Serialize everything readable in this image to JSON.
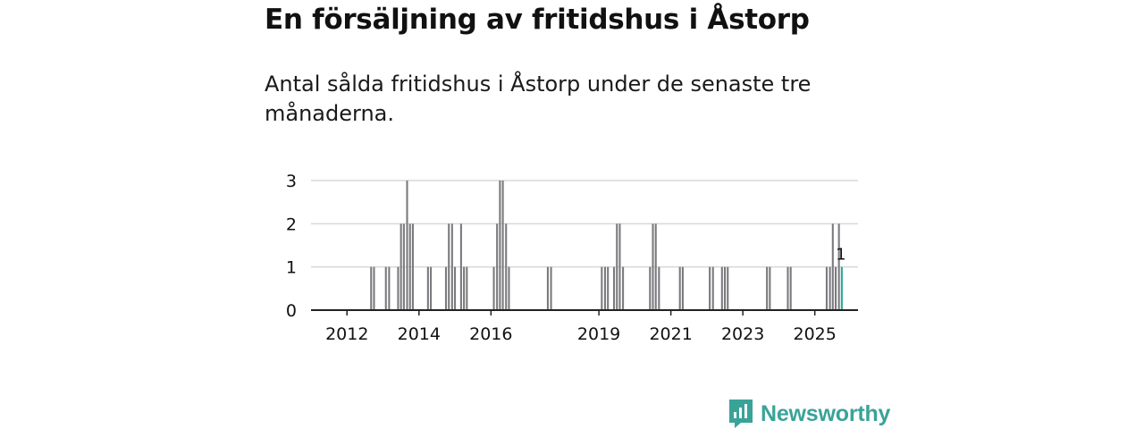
{
  "title": "En försäljning av fritidshus i Åstorp",
  "subtitle": "Antal sålda fritidshus i Åstorp under de senaste tre månaderna.",
  "brand": {
    "name": "Newsworthy",
    "icon": "newsworthy-logo-icon",
    "color": "#3aa398"
  },
  "colors": {
    "bar": "#7a7a7e",
    "highlight": "#2aa79a",
    "grid": "#d8d8d8",
    "axis": "#222222"
  },
  "chart_data": {
    "type": "bar",
    "title": "Antal sålda fritidshus i Åstorp",
    "xlabel": "",
    "ylabel": "",
    "ylim": [
      0,
      3
    ],
    "yticks": [
      0,
      1,
      2,
      3
    ],
    "xlim": [
      2011.0,
      2026.2
    ],
    "xticks": [
      "2012",
      "2014",
      "2016",
      "2019",
      "2021",
      "2023",
      "2025"
    ],
    "xtick_values": [
      2012.0,
      2014.0,
      2016.0,
      2019.0,
      2021.0,
      2023.0,
      2025.0
    ],
    "bar_width_years": 0.0833,
    "series": [
      {
        "name": "Sålda fritidshus",
        "points": [
          {
            "x": 2012.67,
            "y": 1
          },
          {
            "x": 2012.75,
            "y": 1
          },
          {
            "x": 2013.08,
            "y": 1
          },
          {
            "x": 2013.17,
            "y": 1
          },
          {
            "x": 2013.42,
            "y": 1
          },
          {
            "x": 2013.5,
            "y": 2
          },
          {
            "x": 2013.58,
            "y": 2
          },
          {
            "x": 2013.67,
            "y": 3
          },
          {
            "x": 2013.75,
            "y": 2
          },
          {
            "x": 2013.83,
            "y": 2
          },
          {
            "x": 2014.25,
            "y": 1
          },
          {
            "x": 2014.33,
            "y": 1
          },
          {
            "x": 2014.75,
            "y": 1
          },
          {
            "x": 2014.83,
            "y": 2
          },
          {
            "x": 2014.92,
            "y": 2
          },
          {
            "x": 2015.0,
            "y": 1
          },
          {
            "x": 2015.17,
            "y": 2
          },
          {
            "x": 2015.25,
            "y": 1
          },
          {
            "x": 2015.33,
            "y": 1
          },
          {
            "x": 2016.08,
            "y": 1
          },
          {
            "x": 2016.17,
            "y": 2
          },
          {
            "x": 2016.25,
            "y": 3
          },
          {
            "x": 2016.33,
            "y": 3
          },
          {
            "x": 2016.42,
            "y": 2
          },
          {
            "x": 2016.5,
            "y": 1
          },
          {
            "x": 2017.58,
            "y": 1
          },
          {
            "x": 2017.67,
            "y": 1
          },
          {
            "x": 2019.08,
            "y": 1
          },
          {
            "x": 2019.17,
            "y": 1
          },
          {
            "x": 2019.25,
            "y": 1
          },
          {
            "x": 2019.42,
            "y": 1
          },
          {
            "x": 2019.5,
            "y": 2
          },
          {
            "x": 2019.58,
            "y": 2
          },
          {
            "x": 2019.67,
            "y": 1
          },
          {
            "x": 2020.42,
            "y": 1
          },
          {
            "x": 2020.5,
            "y": 2
          },
          {
            "x": 2020.58,
            "y": 2
          },
          {
            "x": 2020.67,
            "y": 1
          },
          {
            "x": 2021.25,
            "y": 1
          },
          {
            "x": 2021.33,
            "y": 1
          },
          {
            "x": 2022.08,
            "y": 1
          },
          {
            "x": 2022.17,
            "y": 1
          },
          {
            "x": 2022.42,
            "y": 1
          },
          {
            "x": 2022.5,
            "y": 1
          },
          {
            "x": 2022.58,
            "y": 1
          },
          {
            "x": 2023.67,
            "y": 1
          },
          {
            "x": 2023.75,
            "y": 1
          },
          {
            "x": 2024.25,
            "y": 1
          },
          {
            "x": 2024.33,
            "y": 1
          },
          {
            "x": 2025.33,
            "y": 1
          },
          {
            "x": 2025.42,
            "y": 1
          },
          {
            "x": 2025.5,
            "y": 2
          },
          {
            "x": 2025.58,
            "y": 1
          },
          {
            "x": 2025.67,
            "y": 2
          },
          {
            "x": 2025.75,
            "y": 1,
            "highlight": true
          }
        ]
      }
    ],
    "annotation": {
      "text": "1",
      "x": 2025.75,
      "y": 1
    }
  }
}
